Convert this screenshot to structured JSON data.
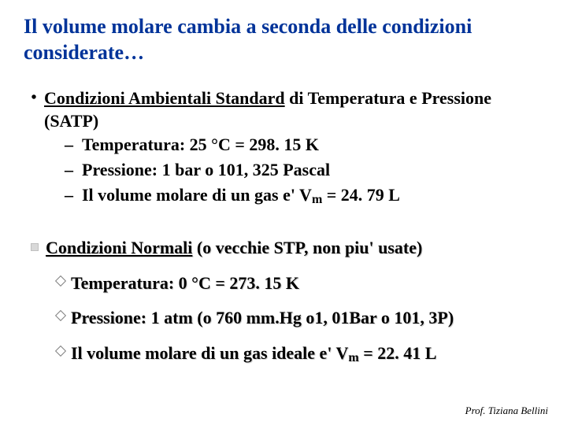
{
  "title": "Il volume molare cambia a seconda delle condizioni considerate…",
  "section1": {
    "heading_underlined": "Condizioni Ambientali Standard",
    "heading_rest": " di Temperatura e Pressione (SATP)",
    "items": {
      "a": "Temperatura: 25 °C = 298. 15 K",
      "b": "Pressione:  1 bar o 101, 325 Pascal",
      "c_pre": "Il volume molare di un gas e'   V",
      "c_sub": "m",
      "c_post": " = 24. 79 L"
    }
  },
  "section2": {
    "heading_underlined": "Condizioni Normali",
    "heading_rest": " (o vecchie STP, non piu' usate)",
    "items": {
      "a": "Temperatura:  0 °C = 273. 15 K",
      "b": "Pressione:  1 atm (o 760 mm.Hg o1, 01Bar o 101, 3P)",
      "c_pre": "Il volume molare di un gas ideale e' V",
      "c_sub": "m",
      "c_post": " =  22. 41 L"
    }
  },
  "footer": "Prof. Tiziana Bellini"
}
